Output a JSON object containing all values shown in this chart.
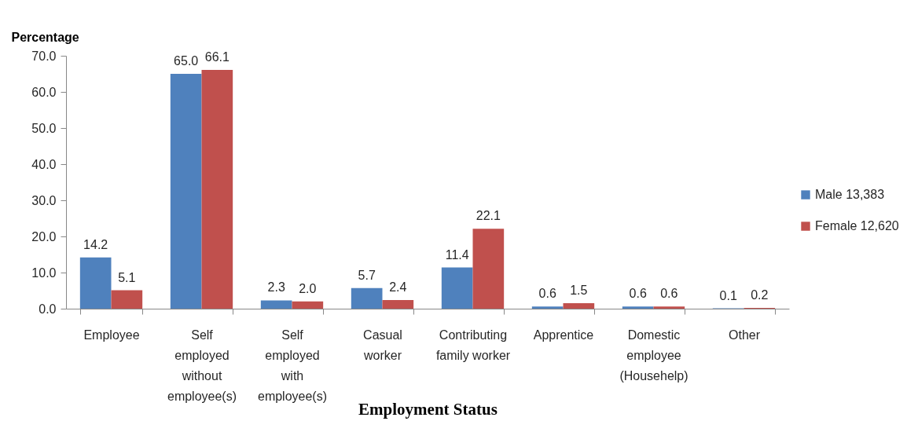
{
  "chart_data": {
    "type": "bar",
    "xlabel": "Employment Status",
    "ylabel": "Percentage",
    "categories": [
      "Employee",
      "Self\nemployed\nwithout\nemployee(s)",
      "Self\nemployed\nwith\nemployee(s)",
      "Casual\nworker",
      "Contributing\nfamily worker",
      "Apprentice",
      "Domestic\nemployee\n(Househelp)",
      "Other"
    ],
    "series": [
      {
        "name": "Male 13,383",
        "color": "#4f81bd",
        "values": [
          14.2,
          65.0,
          2.3,
          5.7,
          11.4,
          0.6,
          0.6,
          0.1
        ],
        "value_labels": [
          "14.2",
          "65.0",
          "2.3",
          "5.7",
          "11.4",
          "0.6",
          "0.6",
          "0.1"
        ]
      },
      {
        "name": "Female 12,620",
        "color": "#c0504d",
        "values": [
          5.1,
          66.1,
          2.0,
          2.4,
          22.1,
          1.5,
          0.6,
          0.2
        ],
        "value_labels": [
          "5.1",
          "66.1",
          "2.0",
          "2.4",
          "22.1",
          "1.5",
          "0.6",
          "0.2"
        ]
      }
    ],
    "ylim": [
      0,
      70
    ],
    "yticks": [
      {
        "value": 0,
        "label": "0.0"
      },
      {
        "value": 10,
        "label": "10.0"
      },
      {
        "value": 20,
        "label": "20.0"
      },
      {
        "value": 30,
        "label": "30.0"
      },
      {
        "value": 40,
        "label": "40.0"
      },
      {
        "value": 50,
        "label": "50.0"
      },
      {
        "value": 60,
        "label": "60.0"
      },
      {
        "value": 70,
        "label": "70.0"
      }
    ],
    "grid": false,
    "legend": "right"
  }
}
